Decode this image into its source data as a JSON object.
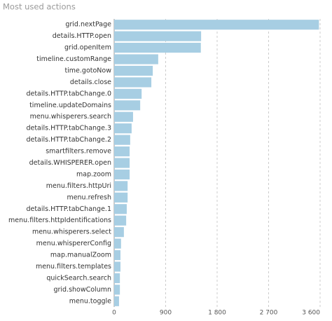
{
  "chart_data": {
    "type": "hbar",
    "title": "Most used actions",
    "categories": [
      "grid.nextPage",
      "details.HTTP.open",
      "grid.openItem",
      "timeline.customRange",
      "time.gotoNow",
      "details.close",
      "details.HTTP.tabChange.0",
      "timeline.updateDomains",
      "menu.whisperers.search",
      "details.HTTP.tabChange.3",
      "details.HTTP.tabChange.2",
      "smartfilters.remove",
      "details.WHISPERER.open",
      "map.zoom",
      "menu.filters.httpUri",
      "menu.refresh",
      "details.HTTP.tabChange.1",
      "menu.filters.httpIdentifications",
      "menu.whisperers.select",
      "menu.whispererConfig",
      "map.manualZoom",
      "menu.filters.templates",
      "quickSearch.search",
      "grid.showColumn",
      "menu.toggle"
    ],
    "values": [
      3580,
      1520,
      1515,
      770,
      675,
      650,
      480,
      455,
      330,
      305,
      280,
      270,
      270,
      270,
      235,
      235,
      220,
      210,
      170,
      120,
      110,
      110,
      100,
      100,
      85
    ],
    "color": "#a7cee3",
    "xlim": [
      0,
      3600
    ],
    "xticks": [
      0,
      900,
      {
        "value": 1800,
        "label": "1 800"
      },
      {
        "value": 2700,
        "label": "2 700"
      },
      {
        "value": 3600,
        "label": "3 600"
      }
    ],
    "grid": true
  }
}
